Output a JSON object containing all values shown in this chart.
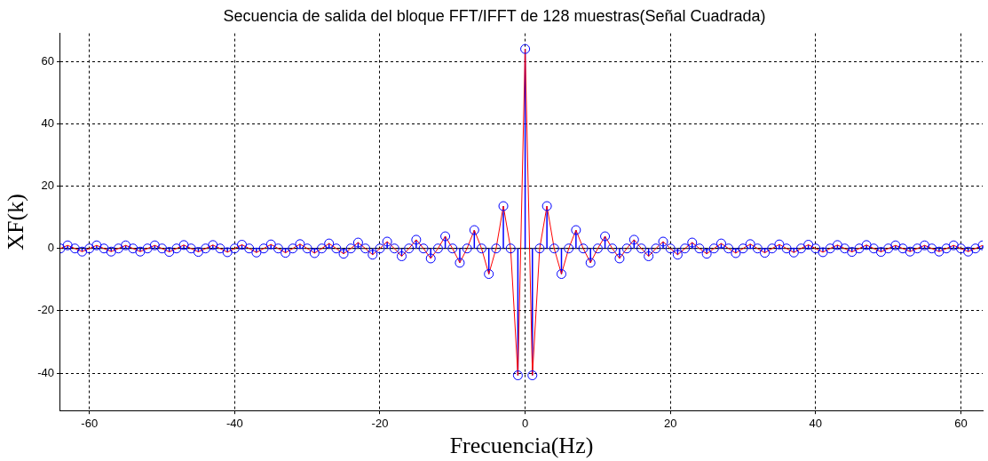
{
  "chart_data": {
    "type": "line",
    "title": "Secuencia de salida del bloque FFT/IFFT de 128 muestras(Señal Cuadrada)",
    "xlabel": "Frecuencia(Hz)",
    "ylabel": "XF(k)",
    "x": [
      -64,
      -63,
      -62,
      -61,
      -60,
      -59,
      -58,
      -57,
      -56,
      -55,
      -54,
      -53,
      -52,
      -51,
      -50,
      -49,
      -48,
      -47,
      -46,
      -45,
      -44,
      -43,
      -42,
      -41,
      -40,
      -39,
      -38,
      -37,
      -36,
      -35,
      -34,
      -33,
      -32,
      -31,
      -30,
      -29,
      -28,
      -27,
      -26,
      -25,
      -24,
      -23,
      -22,
      -21,
      -20,
      -19,
      -18,
      -17,
      -16,
      -15,
      -14,
      -13,
      -12,
      -11,
      -10,
      -9,
      -8,
      -7,
      -6,
      -5,
      -4,
      -3,
      -2,
      -1,
      0,
      1,
      2,
      3,
      4,
      5,
      6,
      7,
      8,
      9,
      10,
      11,
      12,
      13,
      14,
      15,
      16,
      17,
      18,
      19,
      20,
      21,
      22,
      23,
      24,
      25,
      26,
      27,
      28,
      29,
      30,
      31,
      32,
      33,
      34,
      35,
      36,
      37,
      38,
      39,
      40,
      41,
      42,
      43,
      44,
      45,
      46,
      47,
      48,
      49,
      50,
      51,
      52,
      53,
      54,
      55,
      56,
      57,
      58,
      59,
      60,
      61,
      62,
      63
    ],
    "series": [
      {
        "type": "lollipop",
        "color": "#0000ff",
        "marker": "circle",
        "values": [
          0,
          1.0,
          0,
          -1.0,
          0,
          1.0,
          0,
          -1.0,
          0,
          1.0,
          0,
          -1.0,
          0,
          1.0,
          0,
          -1.1,
          0,
          1.1,
          0,
          -1.1,
          0,
          1.1,
          0,
          -1.2,
          0,
          1.2,
          0,
          -1.3,
          0,
          1.3,
          0,
          -1.4,
          0,
          1.4,
          0,
          -1.5,
          0,
          1.6,
          0,
          -1.7,
          0,
          1.9,
          0,
          -2.0,
          0,
          2.2,
          0,
          -2.5,
          0,
          2.8,
          0,
          -3.2,
          0,
          3.9,
          0,
          -4.6,
          0,
          5.9,
          0,
          -8.2,
          0,
          13.6,
          0,
          -40.7,
          64,
          -40.7,
          0,
          13.6,
          0,
          -8.2,
          0,
          5.9,
          0,
          -4.6,
          0,
          3.9,
          0,
          -3.2,
          0,
          2.8,
          0,
          -2.5,
          0,
          2.2,
          0,
          -2.0,
          0,
          1.9,
          0,
          -1.7,
          0,
          1.6,
          0,
          -1.5,
          0,
          1.4,
          0,
          -1.4,
          0,
          1.3,
          0,
          -1.3,
          0,
          1.2,
          0,
          -1.2,
          0,
          1.1,
          0,
          -1.1,
          0,
          1.1,
          0,
          -1.1,
          0,
          1.0,
          0,
          -1.0,
          0,
          1.0,
          0,
          -1.0,
          0,
          1.0,
          0,
          -1.0,
          0,
          1.0
        ]
      },
      {
        "type": "line",
        "color": "#ff0000",
        "marker": "none",
        "values": [
          0,
          1.0,
          0,
          -1.0,
          0,
          1.0,
          0,
          -1.0,
          0,
          1.0,
          0,
          -1.0,
          0,
          1.0,
          0,
          -1.1,
          0,
          1.1,
          0,
          -1.1,
          0,
          1.1,
          0,
          -1.2,
          0,
          1.2,
          0,
          -1.3,
          0,
          1.3,
          0,
          -1.4,
          0,
          1.4,
          0,
          -1.5,
          0,
          1.6,
          0,
          -1.7,
          0,
          1.9,
          0,
          -2.0,
          0,
          2.2,
          0,
          -2.5,
          0,
          2.8,
          0,
          -3.2,
          0,
          3.9,
          0,
          -4.6,
          0,
          5.9,
          0,
          -8.2,
          0,
          13.6,
          0,
          -40.7,
          64,
          -40.7,
          0,
          13.6,
          0,
          -8.2,
          0,
          5.9,
          0,
          -4.6,
          0,
          3.9,
          0,
          -3.2,
          0,
          2.8,
          0,
          -2.5,
          0,
          2.2,
          0,
          -2.0,
          0,
          1.9,
          0,
          -1.7,
          0,
          1.6,
          0,
          -1.5,
          0,
          1.4,
          0,
          -1.4,
          0,
          1.3,
          0,
          -1.3,
          0,
          1.2,
          0,
          -1.2,
          0,
          1.1,
          0,
          -1.1,
          0,
          1.1,
          0,
          -1.1,
          0,
          1.0,
          0,
          -1.0,
          0,
          1.0,
          0,
          -1.0,
          0,
          1.0,
          0,
          -1.0,
          0,
          1.0
        ]
      }
    ],
    "xlim": [
      -64,
      63
    ],
    "xticks": [
      -60,
      -40,
      -20,
      0,
      20,
      40,
      60
    ],
    "ylim": [
      -52,
      69
    ],
    "yticks": [
      -40,
      -20,
      0,
      20,
      40,
      60
    ],
    "grid": true,
    "legend": false,
    "line_style": "solid"
  }
}
